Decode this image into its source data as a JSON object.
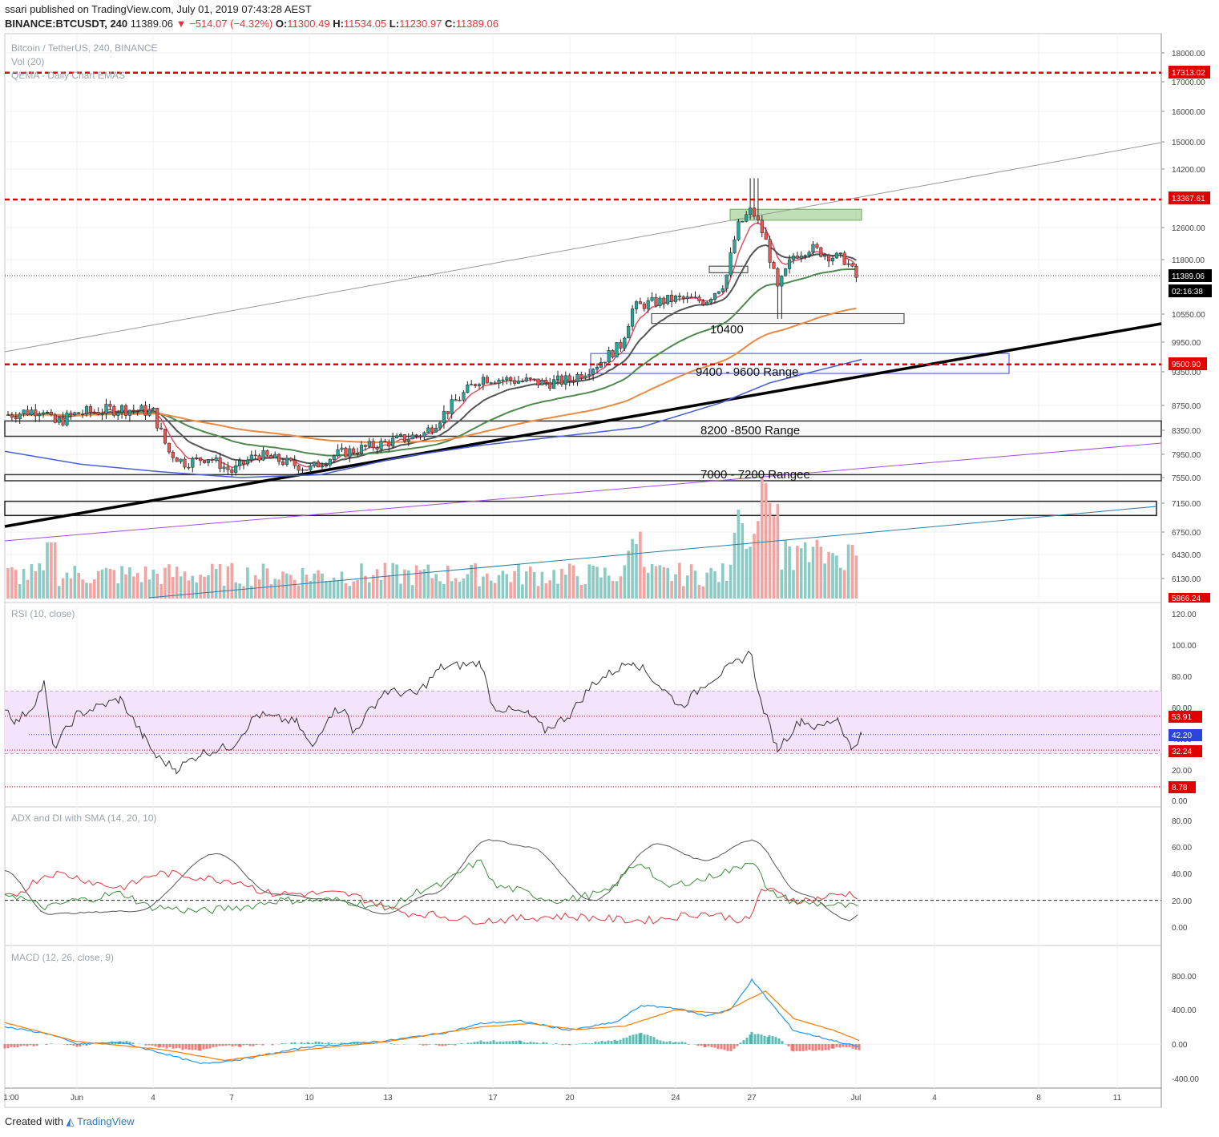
{
  "header": {
    "user": "ssari",
    "published": "published on TradingView.com, July 01, 2019 07:43:28 AEST",
    "symbol": "BINANCE:BTCUSDT, 240",
    "last": "11389.06",
    "change": "▼ −514.07 (−4.32%)",
    "open_label": "O:",
    "open": "11300.49",
    "high_label": "H:",
    "high": "11534.05",
    "low_label": "L:",
    "low": "11230.97",
    "close_label": "C:",
    "close": "11389.06"
  },
  "footer": {
    "created_with": "Created with",
    "brand": "TradingView"
  },
  "colors": {
    "up": "#26a69a",
    "down": "#ef5350",
    "ema_red": "#e0465a",
    "ema_dark": "#555555",
    "ema_green": "#4e8a4e",
    "ema_orange": "#e98a45",
    "sma_blue": "#4a5fd6",
    "level_red": "#e00000",
    "rsi_band": "#f3e4fb",
    "macd_blue": "#2196f3",
    "signal_orange": "#f57c00"
  },
  "chart_data": [
    {
      "type": "candlestick",
      "title": "Bitcoin / TetherUS, 240, BINANCE",
      "indicators": [
        "Vol (20)",
        "QEMA - Daily Chart EMAS"
      ],
      "y_axis_ticks": [
        "18000.00",
        "17000.00",
        "16000.00",
        "15000.00",
        "14200.00",
        "13367.61",
        "12600.00",
        "11800.00",
        "10550.00",
        "9950.00",
        "9350.00",
        "8750.00",
        "8350.00",
        "7950.00",
        "7550.00",
        "7150.00",
        "6750.00",
        "6430.00",
        "6130.00"
      ],
      "price_tags": {
        "level_17313": "17313.02",
        "level_13367": "13367.61",
        "last_price": "11389.06",
        "countdown": "02:16:38",
        "level_9500": "9500.90",
        "volume_floor": "5866.24"
      },
      "x_axis_ticks": [
        "1:00",
        "Jun",
        "4",
        "7",
        "10",
        "13",
        "17",
        "20",
        "24",
        "27",
        "Jul",
        "4",
        "8",
        "11"
      ],
      "horizontal_levels": [
        17313.02,
        13367.61,
        9500.9
      ],
      "annotations": {
        "support": "10400",
        "range_9400": "9400 - 9600 Range",
        "range_8200": "8200 -8500 Range",
        "range_7000": "7000 - 7200 Rangee"
      },
      "ohlc_approx": [
        {
          "date": "Jun 1",
          "open": 8550,
          "high": 8800,
          "low": 8350,
          "close": 8650
        },
        {
          "date": "Jun 4",
          "open": 8700,
          "high": 8800,
          "low": 7950,
          "close": 8050
        },
        {
          "date": "Jun 7",
          "open": 7800,
          "high": 8100,
          "low": 7550,
          "close": 7950
        },
        {
          "date": "Jun 10",
          "open": 7700,
          "high": 8000,
          "low": 7550,
          "close": 7950
        },
        {
          "date": "Jun 13",
          "open": 8100,
          "high": 8250,
          "low": 7950,
          "close": 8200
        },
        {
          "date": "Jun 17",
          "open": 9200,
          "high": 9400,
          "low": 8950,
          "close": 9250
        },
        {
          "date": "Jun 20",
          "open": 9150,
          "high": 9350,
          "low": 9100,
          "close": 9300
        },
        {
          "date": "Jun 24",
          "open": 10800,
          "high": 11200,
          "low": 10500,
          "close": 10900
        },
        {
          "date": "Jun 27",
          "open": 13000,
          "high": 13900,
          "low": 12800,
          "close": 13100
        },
        {
          "date": "Jul 1",
          "open": 11300.49,
          "high": 11534.05,
          "low": 11230.97,
          "close": 11389.06
        }
      ]
    },
    {
      "type": "line",
      "title": "RSI (10, close)",
      "y_axis_ticks": [
        "120.00",
        "100.00",
        "80.00",
        "60.00",
        "40.00",
        "20.00",
        "0.00"
      ],
      "tags": {
        "upper": "53.91",
        "value": "42.20",
        "lower": "32.24",
        "bottom": "8.78"
      },
      "last_value": 42.2
    },
    {
      "type": "line",
      "title": "ADX and DI with SMA (14, 20, 10)",
      "y_axis_ticks": [
        "80.00",
        "60.00",
        "40.00",
        "20.00",
        "0.00"
      ]
    },
    {
      "type": "line",
      "title": "MACD (12, 26, close, 9)",
      "y_axis_ticks": [
        "800.00",
        "400.00",
        "0.00",
        "-400.00"
      ]
    }
  ]
}
